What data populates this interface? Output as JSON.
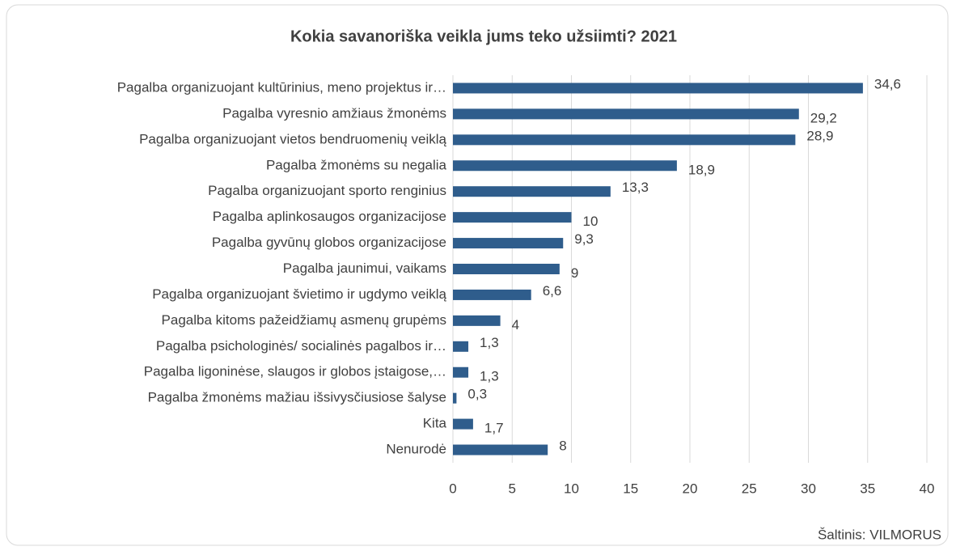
{
  "chart_data": {
    "type": "barh",
    "title": "Kokia savanoriška veikla jums teko užsiimti? 2021",
    "categories": [
      "Pagalba organizuojant kultūrinius, meno projektus ir…",
      "Pagalba vyresnio amžiaus žmonėms",
      "Pagalba organizuojant vietos bendruomenių veiklą",
      "Pagalba žmonėms su negalia",
      "Pagalba organizuojant sporto renginius",
      "Pagalba aplinkosaugos organizacijose",
      "Pagalba gyvūnų globos organizacijose",
      "Pagalba jaunimui, vaikams",
      "Pagalba organizuojant švietimo ir ugdymo veiklą",
      "Pagalba kitoms pažeidžiamų asmenų grupėms",
      "Pagalba psichologinės/ socialinės pagalbos ir…",
      "Pagalba ligoninėse, slaugos ir globos įstaigose,…",
      "Pagalba žmonėms mažiau išsivysčiusiose šalyse",
      "Kita",
      "Nenurodė"
    ],
    "values": [
      34.6,
      29.2,
      28.9,
      18.9,
      13.3,
      10,
      9.3,
      9,
      6.6,
      4,
      1.3,
      1.3,
      0.3,
      1.7,
      8
    ],
    "value_labels": [
      "34,6",
      "29,2",
      "28,9",
      "18,9",
      "13,3",
      "10",
      "9,3",
      "9",
      "6,6",
      "4",
      "1,3",
      "1,3",
      "0,3",
      "1,7",
      "8"
    ],
    "color": "#2f5d8c",
    "xlim": [
      0,
      40
    ],
    "xticks": [
      0,
      5,
      10,
      15,
      20,
      25,
      30,
      35,
      40
    ],
    "grid": true,
    "source": "Šaltinis: VILMORUS"
  }
}
